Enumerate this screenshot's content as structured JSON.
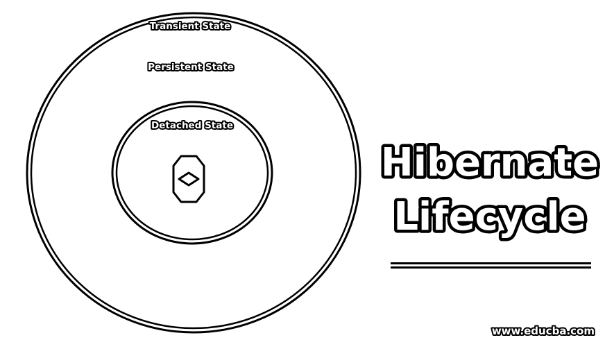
{
  "diagram": {
    "states": {
      "transient": "Transient State",
      "persistent": "Persistent State",
      "detached": "Detached State"
    },
    "title": {
      "line1": "Hibernate",
      "line2": "Lifecycle"
    },
    "watermark": "www.educba.com",
    "icon": "hibernate-object-icon"
  }
}
